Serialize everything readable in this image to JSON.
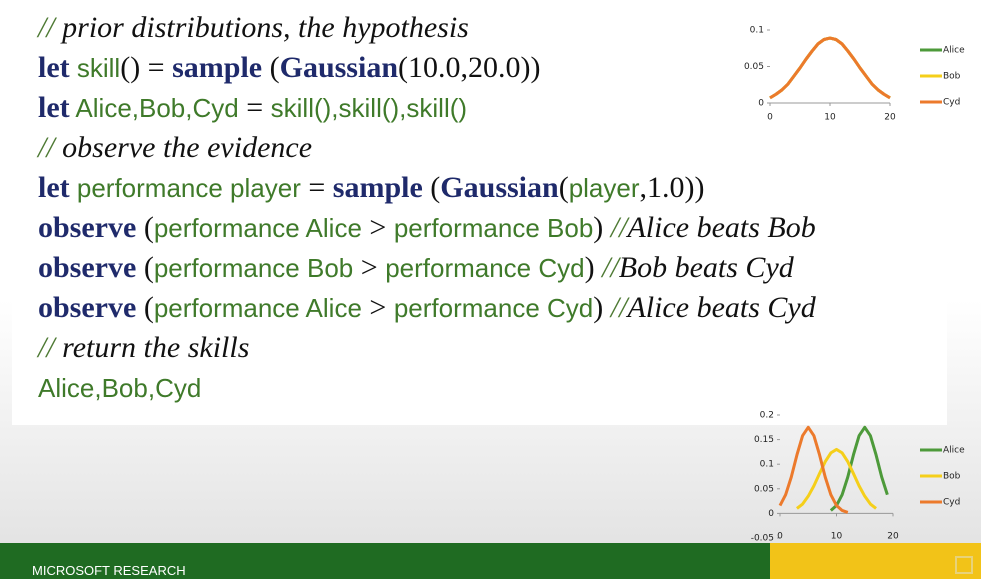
{
  "code": [
    [
      {
        "style": "sl",
        "text": "//"
      },
      {
        "style": "cm",
        "text": " prior distributions, the hypothesis"
      }
    ],
    [
      {
        "style": "kw",
        "text": "let"
      },
      {
        "style": "id",
        "text": " skill"
      },
      {
        "style": "op",
        "text": "() = "
      },
      {
        "style": "kw",
        "text": "sample"
      },
      {
        "style": "op",
        "text": " ("
      },
      {
        "style": "kw",
        "text": "Gaussian"
      },
      {
        "style": "op",
        "text": "(10.0,20.0))"
      }
    ],
    [
      {
        "style": "kw",
        "text": "let"
      },
      {
        "style": "id",
        "text": " Alice,Bob,Cyd"
      },
      {
        "style": "op",
        "text": " = "
      },
      {
        "style": "id",
        "text": "skill(),skill(),skill()"
      }
    ],
    [
      {
        "style": "sl",
        "text": "//"
      },
      {
        "style": "cm",
        "text": " observe the evidence"
      }
    ],
    [
      {
        "style": "kw",
        "text": "let"
      },
      {
        "style": "id",
        "text": " performance player"
      },
      {
        "style": "op",
        "text": " = "
      },
      {
        "style": "kw",
        "text": "sample"
      },
      {
        "style": "op",
        "text": " ("
      },
      {
        "style": "kw",
        "text": "Gaussian"
      },
      {
        "style": "op",
        "text": "("
      },
      {
        "style": "id",
        "text": "player"
      },
      {
        "style": "op",
        "text": ",1.0))"
      }
    ],
    [
      {
        "style": "kw",
        "text": "observe"
      },
      {
        "style": "op",
        "text": " ("
      },
      {
        "style": "id",
        "text": "performance Alice"
      },
      {
        "style": "op",
        "text": " > "
      },
      {
        "style": "id",
        "text": "performance Bob"
      },
      {
        "style": "op",
        "text": ") "
      },
      {
        "style": "sl",
        "text": "//"
      },
      {
        "style": "cm",
        "text": "Alice beats Bob"
      }
    ],
    [
      {
        "style": "kw",
        "text": "observe"
      },
      {
        "style": "op",
        "text": " ("
      },
      {
        "style": "id",
        "text": "performance Bob"
      },
      {
        "style": "op",
        "text": " > "
      },
      {
        "style": "id",
        "text": "performance Cyd"
      },
      {
        "style": "op",
        "text": ") "
      },
      {
        "style": "sl",
        "text": "//"
      },
      {
        "style": "cm",
        "text": "Bob beats Cyd"
      }
    ],
    [
      {
        "style": "kw",
        "text": "observe"
      },
      {
        "style": "op",
        "text": " ("
      },
      {
        "style": "id",
        "text": "performance Alice"
      },
      {
        "style": "op",
        "text": " > "
      },
      {
        "style": "id",
        "text": "performance Cyd"
      },
      {
        "style": "op",
        "text": ") "
      },
      {
        "style": "sl",
        "text": "//"
      },
      {
        "style": "cm",
        "text": "Alice beats Cyd"
      }
    ],
    [
      {
        "style": "sl",
        "text": "//"
      },
      {
        "style": "cm",
        "text": " return the skills"
      }
    ],
    [
      {
        "style": "id",
        "text": "Alice,Bob,Cyd"
      }
    ]
  ],
  "chart_data": [
    {
      "type": "line",
      "xlim": [
        0,
        20
      ],
      "xticks": [
        0,
        10,
        20
      ],
      "ylim": [
        0,
        0.1
      ],
      "yticks": [
        0,
        0.05,
        0.1
      ],
      "grid": false,
      "legend": "right",
      "series": [
        {
          "name": "Alice",
          "color": "#4d9a3a",
          "x": [
            0,
            1,
            2,
            3,
            4,
            5,
            6,
            7,
            8,
            9,
            10,
            11,
            12,
            13,
            14,
            15,
            16,
            17,
            18,
            19,
            20
          ],
          "values": [
            0.007,
            0.012,
            0.018,
            0.026,
            0.037,
            0.048,
            0.06,
            0.071,
            0.081,
            0.087,
            0.089,
            0.087,
            0.081,
            0.071,
            0.06,
            0.048,
            0.037,
            0.026,
            0.018,
            0.012,
            0.007
          ]
        },
        {
          "name": "Bob",
          "color": "#f5cf1a",
          "x": [
            0,
            1,
            2,
            3,
            4,
            5,
            6,
            7,
            8,
            9,
            10,
            11,
            12,
            13,
            14,
            15,
            16,
            17,
            18,
            19,
            20
          ],
          "values": [
            0.007,
            0.012,
            0.018,
            0.026,
            0.037,
            0.048,
            0.06,
            0.071,
            0.081,
            0.087,
            0.089,
            0.087,
            0.081,
            0.071,
            0.06,
            0.048,
            0.037,
            0.026,
            0.018,
            0.012,
            0.007
          ]
        },
        {
          "name": "Cyd",
          "color": "#ec7a2c",
          "x": [
            0,
            1,
            2,
            3,
            4,
            5,
            6,
            7,
            8,
            9,
            10,
            11,
            12,
            13,
            14,
            15,
            16,
            17,
            18,
            19,
            20
          ],
          "values": [
            0.007,
            0.012,
            0.018,
            0.026,
            0.037,
            0.048,
            0.06,
            0.071,
            0.081,
            0.087,
            0.089,
            0.087,
            0.081,
            0.071,
            0.06,
            0.048,
            0.037,
            0.026,
            0.018,
            0.012,
            0.007
          ]
        }
      ]
    },
    {
      "type": "line",
      "xlim": [
        0,
        20
      ],
      "xticks": [
        0,
        10,
        20
      ],
      "ylim": [
        -0.05,
        0.2
      ],
      "yticks": [
        -0.05,
        0,
        0.05,
        0.1,
        0.15,
        0.2
      ],
      "grid": false,
      "legend": "right",
      "series": [
        {
          "name": "Alice",
          "color": "#4d9a3a",
          "x": [
            9,
            10,
            11,
            12,
            13,
            14,
            15,
            16,
            17,
            18,
            19
          ],
          "values": [
            0.006,
            0.016,
            0.038,
            0.074,
            0.119,
            0.158,
            0.175,
            0.158,
            0.119,
            0.074,
            0.038
          ]
        },
        {
          "name": "Bob",
          "color": "#f5cf1a",
          "x": [
            3,
            4,
            5,
            6,
            7,
            8,
            9,
            10,
            11,
            12,
            13,
            14,
            15,
            16,
            17
          ],
          "values": [
            0.01,
            0.019,
            0.035,
            0.056,
            0.081,
            0.105,
            0.123,
            0.13,
            0.123,
            0.105,
            0.081,
            0.056,
            0.035,
            0.019,
            0.01
          ]
        },
        {
          "name": "Cyd",
          "color": "#ec7a2c",
          "x": [
            0,
            1,
            2,
            3,
            4,
            5,
            6,
            7,
            8,
            9,
            10,
            11,
            12
          ],
          "values": [
            0.016,
            0.038,
            0.074,
            0.119,
            0.158,
            0.175,
            0.158,
            0.119,
            0.074,
            0.038,
            0.016,
            0.006,
            0.002
          ]
        }
      ]
    }
  ],
  "footer": "MICROSOFT RESEARCH"
}
